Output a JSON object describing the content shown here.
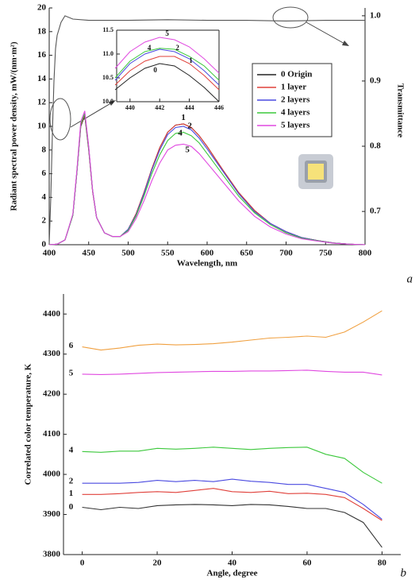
{
  "chart_data": [
    {
      "type": "line",
      "xlabel": "Wavelength, nm",
      "ylabel": "Radiant spectral  power density, mW/(nm·m²)",
      "y2label": "Transmittance",
      "panel_label": "a",
      "xlim": [
        400,
        800
      ],
      "xticks": [
        400,
        450,
        500,
        550,
        600,
        650,
        700,
        750,
        800
      ],
      "ylim": [
        0,
        20
      ],
      "yticks": [
        0,
        2,
        4,
        6,
        8,
        10,
        12,
        14,
        16,
        18,
        20
      ],
      "y2lim": [
        0.649,
        1.012
      ],
      "y2ticks": [
        0.7,
        0.8,
        0.9,
        {
          "value": 1,
          "label": "1.0"
        }
      ],
      "x": [
        400,
        410,
        420,
        430,
        435,
        440,
        445,
        450,
        455,
        460,
        470,
        480,
        490,
        500,
        510,
        520,
        530,
        540,
        550,
        560,
        570,
        580,
        590,
        600,
        620,
        640,
        660,
        680,
        700,
        720,
        740,
        760,
        780,
        800
      ],
      "series": [
        {
          "name": "0 Origin",
          "color": "#222222",
          "values": [
            0,
            0.05,
            0.4,
            2.5,
            6,
            10,
            10.9,
            8,
            4.5,
            2.3,
            1.0,
            0.7,
            0.7,
            1.3,
            2.6,
            4.4,
            6.4,
            8.2,
            9.5,
            10.1,
            10.2,
            9.9,
            9.2,
            8.3,
            6.3,
            4.4,
            2.9,
            1.8,
            1.1,
            0.6,
            0.35,
            0.15,
            0.05,
            0
          ]
        },
        {
          "name": "1 layer",
          "color": "#e0403a",
          "values": [
            0,
            0.05,
            0.4,
            2.5,
            6.1,
            10.1,
            11.0,
            8.1,
            4.5,
            2.3,
            1.0,
            0.7,
            0.7,
            1.3,
            2.6,
            4.4,
            6.4,
            8.2,
            9.5,
            10.1,
            10.2,
            9.9,
            9.2,
            8.3,
            6.3,
            4.4,
            2.9,
            1.8,
            1.1,
            0.6,
            0.35,
            0.15,
            0.05,
            0
          ]
        },
        {
          "name": "2 layers",
          "color": "#4a4ae0",
          "values": [
            0,
            0.05,
            0.4,
            2.5,
            6.1,
            10.2,
            11.1,
            8.2,
            4.6,
            2.3,
            1.0,
            0.7,
            0.7,
            1.3,
            2.5,
            4.3,
            6.3,
            8.0,
            9.3,
            9.9,
            10.0,
            9.7,
            9.0,
            8.1,
            6.2,
            4.3,
            2.8,
            1.8,
            1.1,
            0.6,
            0.34,
            0.15,
            0.05,
            0
          ]
        },
        {
          "name": "4 layers",
          "color": "#3cc83c",
          "values": [
            0,
            0.05,
            0.4,
            2.5,
            6.1,
            10.2,
            11.1,
            8.2,
            4.6,
            2.3,
            1.0,
            0.7,
            0.7,
            1.2,
            2.4,
            4.1,
            6.0,
            7.6,
            8.8,
            9.4,
            9.5,
            9.2,
            8.6,
            7.7,
            5.9,
            4.1,
            2.7,
            1.7,
            1.0,
            0.55,
            0.32,
            0.14,
            0.05,
            0
          ]
        },
        {
          "name": "5 layers",
          "color": "#e048e0",
          "values": [
            0,
            0.05,
            0.4,
            2.6,
            6.2,
            10.4,
            11.3,
            8.3,
            4.6,
            2.3,
            1.0,
            0.7,
            0.7,
            1.1,
            2.2,
            3.7,
            5.4,
            6.9,
            8.0,
            8.4,
            8.5,
            8.3,
            7.7,
            6.9,
            5.3,
            3.7,
            2.4,
            1.5,
            0.9,
            0.5,
            0.3,
            0.13,
            0.05,
            0
          ]
        },
        {
          "axis": "y2",
          "color": "#555555",
          "x": [
            400,
            402,
            404,
            406,
            408,
            410,
            415,
            420,
            430,
            450,
            500,
            550,
            600,
            650,
            700,
            750,
            800
          ],
          "values": [
            0.65,
            0.72,
            0.82,
            0.9,
            0.95,
            0.97,
            0.99,
            1.0,
            0.995,
            0.993,
            0.993,
            0.994,
            0.993,
            0.993,
            0.992,
            0.993,
            0.993
          ]
        }
      ],
      "annotations": [
        {
          "text": "1",
          "x": 570,
          "y": 10.7
        },
        {
          "text": "2",
          "x": 578,
          "y": 10.0
        },
        {
          "text": "4",
          "x": 566,
          "y": 9.4
        },
        {
          "text": "5",
          "x": 575,
          "y": 8.0
        }
      ],
      "inset": {
        "xlim": [
          439.1,
          446
        ],
        "xticks": [
          440,
          442,
          444,
          446
        ],
        "ylim": [
          10,
          11.5
        ],
        "yticks": [
          {
            "value": 10,
            "label": "10.0"
          },
          10.5,
          {
            "value": 11,
            "label": "11.0"
          },
          11.5
        ],
        "x": [
          439,
          440,
          441,
          442,
          443,
          444,
          445,
          446
        ],
        "series": [
          {
            "color": "#222222",
            "values": [
              10.25,
              10.5,
              10.7,
              10.8,
              10.75,
              10.55,
              10.3,
              10.0
            ]
          },
          {
            "color": "#e0403a",
            "values": [
              10.35,
              10.65,
              10.85,
              10.95,
              10.95,
              10.8,
              10.55,
              10.25
            ]
          },
          {
            "color": "#4a4ae0",
            "values": [
              10.45,
              10.8,
              11.0,
              11.1,
              11.05,
              10.9,
              10.65,
              10.35
            ]
          },
          {
            "color": "#3cc83c",
            "values": [
              10.5,
              10.85,
              11.05,
              11.12,
              11.1,
              10.95,
              10.75,
              10.45
            ]
          },
          {
            "color": "#e048e0",
            "values": [
              10.7,
              11.05,
              11.25,
              11.35,
              11.3,
              11.15,
              10.9,
              10.6
            ]
          }
        ],
        "annotations": [
          {
            "text": "5",
            "x": 442.5,
            "y": 11.42
          },
          {
            "text": "4",
            "x": 441.3,
            "y": 11.12
          },
          {
            "text": "2",
            "x": 443.2,
            "y": 11.12
          },
          {
            "text": "1",
            "x": 444.1,
            "y": 10.85
          },
          {
            "text": "0",
            "x": 441.7,
            "y": 10.65
          }
        ]
      }
    },
    {
      "type": "line",
      "xlabel": "Angle, degree",
      "ylabel": "Correlated color temperature, K",
      "panel_label": "b",
      "xlim": [
        -5,
        85
      ],
      "xticks": [
        0,
        20,
        40,
        60,
        80
      ],
      "ylim": [
        3800,
        4450
      ],
      "yticks": [
        3800,
        3900,
        4000,
        4100,
        4200,
        4300,
        4400
      ],
      "x": [
        0,
        5,
        10,
        15,
        20,
        25,
        30,
        35,
        40,
        45,
        50,
        55,
        60,
        65,
        70,
        75,
        80
      ],
      "series": [
        {
          "color": "#333333",
          "values": [
            3918,
            3912,
            3918,
            3915,
            3922,
            3924,
            3925,
            3924,
            3922,
            3925,
            3924,
            3920,
            3915,
            3915,
            3905,
            3880,
            3818
          ]
        },
        {
          "color": "#e0403a",
          "values": [
            3950,
            3950,
            3952,
            3955,
            3957,
            3955,
            3960,
            3965,
            3957,
            3955,
            3958,
            3952,
            3953,
            3950,
            3942,
            3915,
            3885
          ]
        },
        {
          "color": "#4a4ae0",
          "values": [
            3978,
            3978,
            3978,
            3980,
            3985,
            3982,
            3985,
            3982,
            3988,
            3983,
            3980,
            3975,
            3975,
            3965,
            3955,
            3925,
            3888
          ]
        },
        {
          "color": "#3cc83c",
          "values": [
            4057,
            4055,
            4058,
            4058,
            4065,
            4063,
            4065,
            4068,
            4065,
            4062,
            4065,
            4067,
            4068,
            4050,
            4040,
            4005,
            3978
          ]
        },
        {
          "color": "#e048e0",
          "values": [
            4250,
            4249,
            4250,
            4252,
            4254,
            4255,
            4256,
            4257,
            4257,
            4258,
            4258,
            4259,
            4260,
            4257,
            4255,
            4255,
            4248
          ]
        },
        {
          "color": "#f0a040",
          "values": [
            4318,
            4310,
            4315,
            4322,
            4325,
            4323,
            4324,
            4326,
            4330,
            4335,
            4340,
            4342,
            4345,
            4342,
            4355,
            4380,
            4408
          ]
        }
      ],
      "annotations": [
        {
          "text": "0",
          "x": -3,
          "y": 3918
        },
        {
          "text": "1",
          "x": -3,
          "y": 3952
        },
        {
          "text": "2",
          "x": -3,
          "y": 3982
        },
        {
          "text": "4",
          "x": -3,
          "y": 4060
        },
        {
          "text": "5",
          "x": -3,
          "y": 4252
        },
        {
          "text": "6",
          "x": -3,
          "y": 4320
        }
      ]
    }
  ]
}
